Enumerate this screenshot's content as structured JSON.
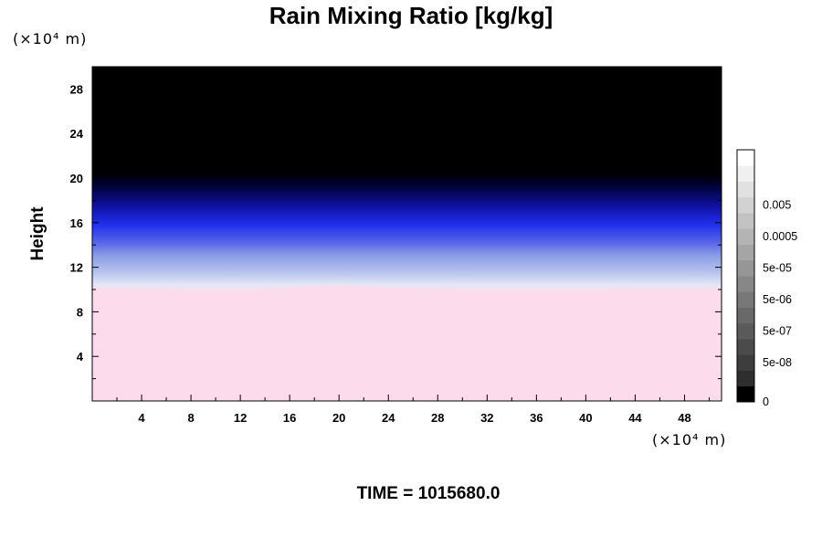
{
  "chart_data": {
    "type": "heatmap",
    "title": "Rain Mixing Ratio [kg/kg]",
    "ylabel": "Height",
    "x_unit": "(×10⁴ m)",
    "y_unit": "(×10⁴ m)",
    "x_ticks": [
      4,
      8,
      12,
      16,
      20,
      24,
      28,
      32,
      36,
      40,
      44,
      48
    ],
    "y_ticks": [
      4,
      8,
      12,
      16,
      20,
      24,
      28
    ],
    "xlim": [
      0,
      51
    ],
    "ylim": [
      0,
      30
    ],
    "colorbar": {
      "labels": [
        "0",
        "5e-08",
        "5e-07",
        "5e-06",
        "5e-05",
        "0.0005",
        "0.005"
      ],
      "levels": 16,
      "colors": [
        "#000000",
        "#ffffff"
      ]
    },
    "field": {
      "profile": [
        {
          "height": 0,
          "color": "#fcdcec"
        },
        {
          "height": 9.8,
          "color": "#fcdcec"
        },
        {
          "height": 10.4,
          "color": "#e4e8f6"
        },
        {
          "height": 11.5,
          "color": "#b8c4ec"
        },
        {
          "height": 13.0,
          "color": "#8c9ee6"
        },
        {
          "height": 14.2,
          "color": "#5a66e8"
        },
        {
          "height": 15.8,
          "color": "#2030ec"
        },
        {
          "height": 17.5,
          "color": "#1010a0"
        },
        {
          "height": 19.4,
          "color": "#000030"
        },
        {
          "height": 20.5,
          "color": "#000000"
        },
        {
          "height": 30,
          "color": "#000000"
        }
      ],
      "melt_level": [
        {
          "x": 0,
          "height": 10.2
        },
        {
          "x": 4,
          "height": 10.0
        },
        {
          "x": 8,
          "height": 9.8
        },
        {
          "x": 12,
          "height": 9.6
        },
        {
          "x": 16,
          "height": 10.2
        },
        {
          "x": 20,
          "height": 10.4
        },
        {
          "x": 24,
          "height": 10.2
        },
        {
          "x": 28,
          "height": 10.0
        },
        {
          "x": 32,
          "height": 9.6
        },
        {
          "x": 36,
          "height": 9.8
        },
        {
          "x": 40,
          "height": 9.7
        },
        {
          "x": 44,
          "height": 10.0
        },
        {
          "x": 48,
          "height": 10.0
        },
        {
          "x": 51,
          "height": 9.9
        }
      ]
    }
  },
  "time_label": "TIME = 1015680.0"
}
